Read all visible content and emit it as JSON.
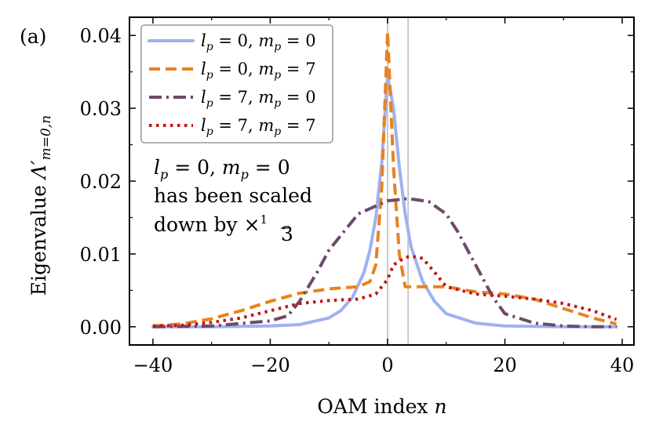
{
  "chart_data": {
    "type": "line",
    "panel_label": "(a)",
    "xlabel": "OAM index n",
    "ylabel": "Eigenvalue Λ′m=0,n",
    "ylabel_main": "Eigenvalue ",
    "ylabel_symbol": "Λ′",
    "ylabel_sub": "m=0,n",
    "xlim": [
      -44,
      42
    ],
    "ylim": [
      -0.0025,
      0.0425
    ],
    "xticks": [
      -40,
      -20,
      0,
      20,
      40
    ],
    "xtick_labels": [
      "−40",
      "−20",
      "0",
      "20",
      "40"
    ],
    "yticks": [
      0.0,
      0.01,
      0.02,
      0.03,
      0.04
    ],
    "ytick_labels": [
      "0.00",
      "0.01",
      "0.02",
      "0.03",
      "0.04"
    ],
    "vertical_lines": [
      0,
      3.5
    ],
    "annotation": {
      "line1": "lp = 0, mp = 0",
      "line2": "has been scaled",
      "line3": "down by ×1/3"
    },
    "legend": {
      "placement": "upper-left",
      "entries": [
        "lp = 0, mp = 0",
        "lp = 0, mp = 7",
        "lp = 7, mp = 0",
        "lp = 7, mp = 7"
      ]
    },
    "series": [
      {
        "name": "lp = 0, mp = 0",
        "color": "#9fb1f0",
        "style": "solid",
        "x": [
          -40,
          -30,
          -20,
          -15,
          -10,
          -8,
          -6,
          -4,
          -3,
          -2,
          -1,
          0,
          1,
          2,
          3,
          4,
          6,
          8,
          10,
          15,
          20,
          30,
          39
        ],
        "y": [
          0.0,
          0.0,
          0.0001,
          0.0003,
          0.0012,
          0.0022,
          0.004,
          0.0075,
          0.0105,
          0.015,
          0.0225,
          0.0345,
          0.03,
          0.022,
          0.0155,
          0.011,
          0.0062,
          0.0035,
          0.0018,
          0.0005,
          0.0001,
          0.0,
          0.0
        ]
      },
      {
        "name": "lp = 0, mp = 7",
        "color": "#e8821e",
        "style": "dashed",
        "x": [
          -40,
          -35,
          -30,
          -25,
          -20,
          -15,
          -10,
          -5,
          -3,
          -2,
          -1,
          0,
          1,
          2,
          3,
          5,
          10,
          15,
          20,
          25,
          30,
          35,
          39
        ],
        "y": [
          0.0001,
          0.0004,
          0.0011,
          0.0022,
          0.0035,
          0.0046,
          0.0052,
          0.0055,
          0.0062,
          0.0085,
          0.019,
          0.0405,
          0.022,
          0.01,
          0.0055,
          0.0055,
          0.0055,
          0.0048,
          0.0045,
          0.0038,
          0.0025,
          0.0012,
          0.0004
        ]
      },
      {
        "name": "lp = 7, mp = 0",
        "color": "#6e4a6a",
        "style": "dashdot",
        "x": [
          -40,
          -30,
          -20,
          -17,
          -15,
          -12,
          -10,
          -5,
          0,
          3.5,
          7,
          10,
          12,
          15,
          18,
          20,
          25,
          30,
          35,
          39
        ],
        "y": [
          0.0,
          0.0001,
          0.0008,
          0.0015,
          0.0035,
          0.0075,
          0.0105,
          0.0155,
          0.0173,
          0.0176,
          0.0172,
          0.0155,
          0.013,
          0.0085,
          0.004,
          0.0018,
          0.0005,
          0.0001,
          0.0,
          0.0
        ]
      },
      {
        "name": "lp = 7, mp = 7",
        "color": "#c01818",
        "style": "dotted",
        "x": [
          -40,
          -35,
          -30,
          -25,
          -20,
          -15,
          -10,
          -5,
          -2,
          0,
          1,
          3,
          4,
          6,
          8,
          10,
          15,
          20,
          25,
          30,
          35,
          39
        ],
        "y": [
          0.0001,
          0.0002,
          0.0006,
          0.0012,
          0.0022,
          0.0032,
          0.0036,
          0.0038,
          0.0045,
          0.0065,
          0.0085,
          0.0095,
          0.0097,
          0.0094,
          0.0075,
          0.0055,
          0.0045,
          0.0042,
          0.0038,
          0.0032,
          0.0022,
          0.001
        ]
      }
    ]
  }
}
